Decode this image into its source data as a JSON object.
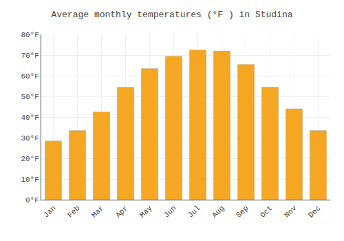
{
  "chart_data": {
    "type": "bar",
    "title": "Average monthly temperatures (°F ) in Studina",
    "categories": [
      "Jan",
      "Feb",
      "Mar",
      "Apr",
      "May",
      "Jun",
      "Jul",
      "Aug",
      "Sep",
      "Oct",
      "Nov",
      "Dec"
    ],
    "values": [
      28.5,
      33.5,
      42.5,
      54.5,
      63.5,
      69.5,
      72.5,
      72.0,
      65.5,
      54.5,
      44.0,
      33.5
    ],
    "color": "#F5A623",
    "ylim": [
      0,
      80
    ],
    "yticks": [
      {
        "value": 0,
        "label": "0°F"
      },
      {
        "value": 10,
        "label": "10°F"
      },
      {
        "value": 20,
        "label": "20°F"
      },
      {
        "value": 30,
        "label": "30°F"
      },
      {
        "value": 40,
        "label": "40°F"
      },
      {
        "value": 50,
        "label": "50°F"
      },
      {
        "value": 60,
        "label": "60°F"
      },
      {
        "value": 70,
        "label": "70°F"
      },
      {
        "value": 80,
        "label": "80°F"
      }
    ],
    "grid": true
  }
}
